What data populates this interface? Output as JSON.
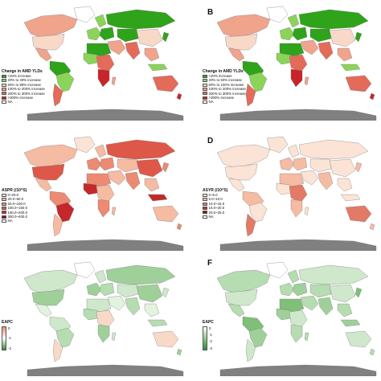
{
  "panels": [
    {
      "letter": "",
      "legend_type": "categorical",
      "legend_title": "Change in AMD YLDs",
      "legend_items": [
        {
          "label": "<20% increase",
          "color": "#2fa31a"
        },
        {
          "label": "20% to 49% increase",
          "color": "#8cd35a"
        },
        {
          "label": "50% to 99% increase",
          "color": "#f8d9c8"
        },
        {
          "label": "100% to 200% increase",
          "color": "#f0a48c"
        },
        {
          "label": "200% to 300% increase",
          "color": "#e46a5a"
        },
        {
          "label": ">300% increase",
          "color": "#c8242a"
        },
        {
          "label": "NA",
          "color": "#ffffff"
        }
      ],
      "palette": [
        "#f0a48c",
        "#e46a5a",
        "#f8d9c8",
        "#f0a48c",
        "#2fa31a",
        "#8cd35a",
        "#e46a5a",
        "#c8242a"
      ]
    },
    {
      "letter": "B",
      "legend_type": "categorical",
      "legend_title": "Change in AMD YLDs",
      "legend_items": [
        {
          "label": "<20% increase",
          "color": "#2fa31a"
        },
        {
          "label": "20% to 50% increase",
          "color": "#8cd35a"
        },
        {
          "label": "50% to 100% increase",
          "color": "#f8d9c8"
        },
        {
          "label": "100% to 200% increase",
          "color": "#f0a48c"
        },
        {
          "label": "200% to 300% increase",
          "color": "#e46a5a"
        },
        {
          "label": ">300% increase",
          "color": "#c8242a"
        },
        {
          "label": "NA",
          "color": "#ffffff"
        }
      ],
      "palette": [
        "#f0a48c",
        "#e46a5a",
        "#f8d9c8",
        "#f0a48c",
        "#2fa31a",
        "#8cd35a",
        "#e46a5a",
        "#c8242a"
      ]
    },
    {
      "letter": "",
      "legend_type": "categorical",
      "legend_title": "ASPR (/10^5)",
      "legend_items": [
        {
          "label": "0~20.0",
          "color": "#fbe3d6"
        },
        {
          "label": "20.0~50.0",
          "color": "#f5bba3"
        },
        {
          "label": "50.0~100.0",
          "color": "#ec8a72"
        },
        {
          "label": "100.0~150.0",
          "color": "#dd5848"
        },
        {
          "label": "150.0~200.0",
          "color": "#c4282a"
        },
        {
          "label": "300.0~400.0",
          "color": "#8e0f16"
        },
        {
          "label": "NA",
          "color": "#ffffff"
        }
      ],
      "palette": [
        "#f5bba3",
        "#ec8a72",
        "#dd5848",
        "#f5bba3",
        "#ec8a72",
        "#c4282a",
        "#f5bba3",
        "#ec8a72"
      ]
    },
    {
      "letter": "D",
      "legend_type": "categorical",
      "legend_title": "ASYR (/10^5)",
      "legend_items": [
        {
          "label": "0~5.0",
          "color": "#fbe3d6"
        },
        {
          "label": "5.0~10.0",
          "color": "#f5bba3"
        },
        {
          "label": "10.0~15.0",
          "color": "#e27a66"
        },
        {
          "label": "15.0~20.0",
          "color": "#c4282a"
        },
        {
          "label": "20.0~25.0",
          "color": "#8e0f16"
        },
        {
          "label": "NA",
          "color": "#ffffff"
        }
      ],
      "palette": [
        "#fbe3d6",
        "#f5bba3",
        "#fbe3d6",
        "#fbe3d6",
        "#f5bba3",
        "#fbe3d6",
        "#e27a66",
        "#f5bba3"
      ]
    },
    {
      "letter": "",
      "legend_type": "gradient",
      "legend_title": "EAPC",
      "gradient_colors": [
        "#f08c70",
        "#ffffff",
        "#2e8b3a"
      ],
      "gradient_ticks": [
        "0",
        "-1",
        "-2"
      ],
      "palette": [
        "#cfe8cb",
        "#b6dcb1",
        "#9fd09a",
        "#e4f2e0",
        "#cfe8cb",
        "#b6dcb1",
        "#f8d9c8",
        "#9fd09a"
      ]
    },
    {
      "letter": "F",
      "legend_type": "gradient",
      "legend_title": "EAPC",
      "gradient_colors": [
        "#ffffff",
        "#8fc98a",
        "#2e8b3a"
      ],
      "gradient_ticks": [
        "0",
        "-1",
        "-2",
        "-3"
      ],
      "palette": [
        "#b6dcb1",
        "#9fd09a",
        "#cfe8cb",
        "#b6dcb1",
        "#7fbf77",
        "#9fd09a",
        "#cfe8cb",
        "#b6dcb1"
      ]
    }
  ]
}
